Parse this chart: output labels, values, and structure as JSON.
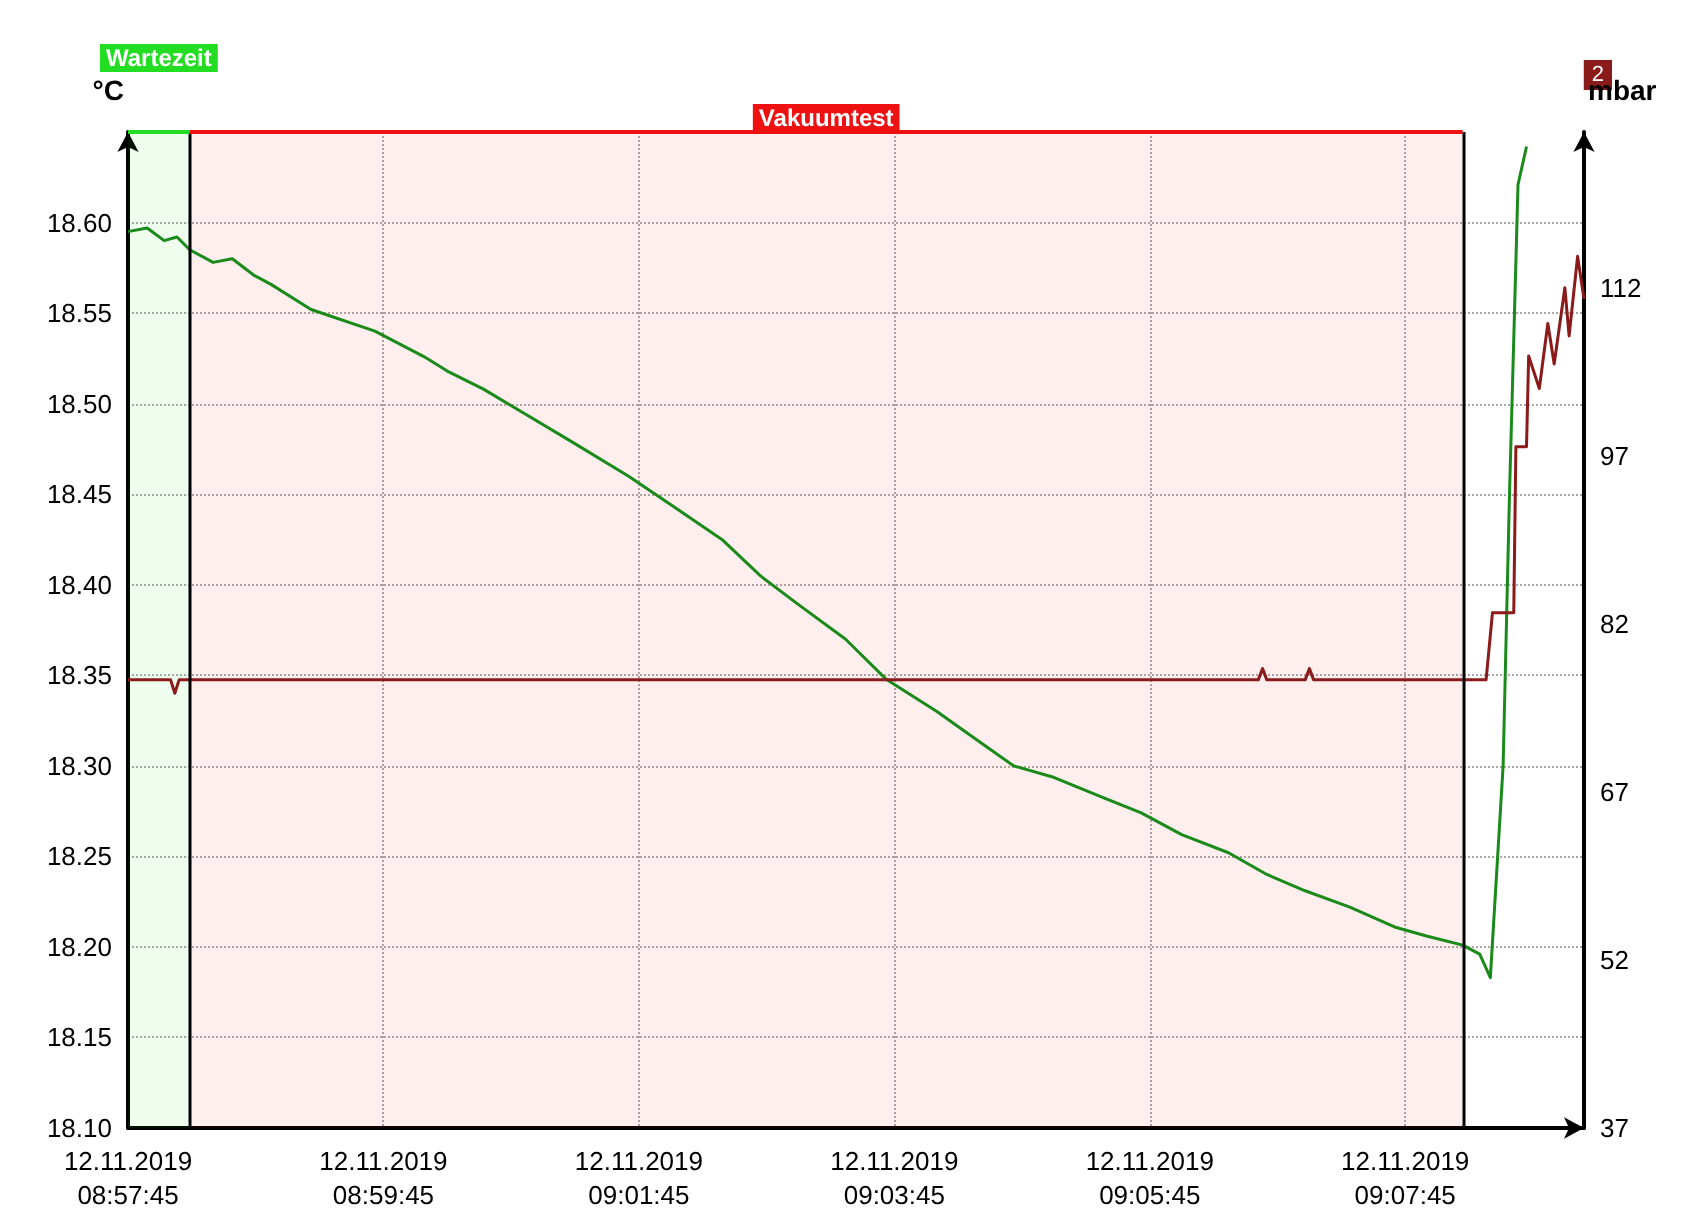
{
  "chart_data": {
    "type": "line",
    "ylabel": "°C",
    "y2label": "mbar",
    "xlim": [
      "2019-11-12T08:57:45",
      "2019-11-12T09:09:09"
    ],
    "xticks": [
      {
        "value": "2019-11-12T08:57:45",
        "label": "12.11.2019\n08:57:45"
      },
      {
        "value": "2019-11-12T08:59:45",
        "label": "12.11.2019\n08:59:45"
      },
      {
        "value": "2019-11-12T09:01:45",
        "label": "12.11.2019\n09:01:45"
      },
      {
        "value": "2019-11-12T09:03:45",
        "label": "12.11.2019\n09:03:45"
      },
      {
        "value": "2019-11-12T09:05:45",
        "label": "12.11.2019\n09:05:45"
      },
      {
        "value": "2019-11-12T09:07:45",
        "label": "12.11.2019\n09:07:45"
      }
    ],
    "ylim": [
      18.1,
      18.65
    ],
    "yticks": [
      {
        "value": 18.1,
        "label": "18.10"
      },
      {
        "value": 18.15,
        "label": "18.15"
      },
      {
        "value": 18.2,
        "label": "18.20"
      },
      {
        "value": 18.25,
        "label": "18.25"
      },
      {
        "value": 18.3,
        "label": "18.30"
      },
      {
        "value": 18.35,
        "label": "18.35"
      },
      {
        "value": 18.4,
        "label": "18.40"
      },
      {
        "value": 18.45,
        "label": "18.45"
      },
      {
        "value": 18.5,
        "label": "18.50"
      },
      {
        "value": 18.55,
        "label": "18.55"
      },
      {
        "value": 18.6,
        "label": "18.60"
      }
    ],
    "y2lim": [
      37,
      125.9
    ],
    "y2ticks": [
      37,
      52,
      67,
      82,
      97,
      112
    ],
    "grid": true,
    "marker": "none",
    "line_style": "solid",
    "series": [
      {
        "color": "#1a8a1a",
        "x": [
          "2019-11-12T08:57:45",
          "2019-11-12T08:57:54",
          "2019-11-12T08:58:02",
          "2019-11-12T08:58:08",
          "2019-11-12T08:58:14",
          "2019-11-12T08:58:25",
          "2019-11-12T08:58:34",
          "2019-11-12T08:58:44",
          "2019-11-12T08:58:52",
          "2019-11-12T08:59:11",
          "2019-11-12T08:59:41",
          "2019-11-12T09:00:04",
          "2019-11-12T09:00:15",
          "2019-11-12T09:00:32",
          "2019-11-12T09:00:52",
          "2019-11-12T09:01:12",
          "2019-11-12T09:01:40",
          "2019-11-12T09:01:59",
          "2019-11-12T09:02:24",
          "2019-11-12T09:02:42",
          "2019-11-12T09:03:00",
          "2019-11-12T09:03:22",
          "2019-11-12T09:03:41",
          "2019-11-12T09:04:05",
          "2019-11-12T09:04:23",
          "2019-11-12T09:04:41",
          "2019-11-12T09:04:59",
          "2019-11-12T09:05:24",
          "2019-11-12T09:05:41",
          "2019-11-12T09:06:00",
          "2019-11-12T09:06:22",
          "2019-11-12T09:06:40",
          "2019-11-12T09:06:58",
          "2019-11-12T09:07:19",
          "2019-11-12T09:07:40",
          "2019-11-12T09:07:55",
          "2019-11-12T09:08:12",
          "2019-11-12T09:08:20",
          "2019-11-12T09:08:25",
          "2019-11-12T09:08:31",
          "2019-11-12T09:08:34",
          "2019-11-12T09:08:38",
          "2019-11-12T09:08:42"
        ],
        "values": [
          18.595,
          18.597,
          18.59,
          18.592,
          18.585,
          18.578,
          18.58,
          18.571,
          18.566,
          18.552,
          18.54,
          18.526,
          18.518,
          18.508,
          18.494,
          18.48,
          18.46,
          18.445,
          18.425,
          18.405,
          18.389,
          18.37,
          18.348,
          18.33,
          18.315,
          18.3,
          18.294,
          18.282,
          18.274,
          18.262,
          18.252,
          18.24,
          18.231,
          18.222,
          18.211,
          18.206,
          18.201,
          18.196,
          18.183,
          18.3,
          18.45,
          18.621,
          18.642
        ]
      },
      {
        "color": "#8b1a1a",
        "axis": "y2",
        "x": [
          "2019-11-12T08:57:45",
          "2019-11-12T08:58:05",
          "2019-11-12T08:58:07",
          "2019-11-12T08:58:09",
          "2019-11-12T09:06:36",
          "2019-11-12T09:06:38",
          "2019-11-12T09:06:40",
          "2019-11-12T09:06:58",
          "2019-11-12T09:07:00",
          "2019-11-12T09:07:02",
          "2019-11-12T09:07:35",
          "2019-11-12T09:08:23",
          "2019-11-12T09:08:26",
          "2019-11-12T09:08:36",
          "2019-11-12T09:08:37",
          "2019-11-12T09:08:42",
          "2019-11-12T09:08:43",
          "2019-11-12T09:08:48",
          "2019-11-12T09:08:52",
          "2019-11-12T09:08:55",
          "2019-11-12T09:09:00",
          "2019-11-12T09:09:02",
          "2019-11-12T09:09:06",
          "2019-11-12T09:09:09"
        ],
        "values": [
          77.0,
          77.0,
          75.8,
          77.0,
          77.0,
          78.0,
          77.0,
          77.0,
          78.0,
          77.0,
          77.0,
          77.0,
          83.0,
          83.0,
          97.8,
          97.8,
          105.9,
          103.0,
          108.8,
          105.2,
          112.0,
          107.7,
          114.8,
          111.0
        ]
      }
    ],
    "ref_lines": [
      {
        "axis": "x",
        "value": "2019-11-12T08:58:14",
        "color": "#000000"
      },
      {
        "axis": "x",
        "value": "2019-11-12T09:08:12",
        "color": "#000000"
      }
    ],
    "bands": [
      {
        "axis": "x",
        "from": "2019-11-12T08:57:45",
        "to": "2019-11-12T08:58:14",
        "label": "Wartezeit",
        "color": "#22dd22"
      },
      {
        "axis": "x",
        "from": "2019-11-12T08:58:14",
        "to": "2019-11-12T09:08:12",
        "label": "Vakuumtest",
        "color": "#ee1111"
      }
    ],
    "annotations": [
      "2"
    ]
  }
}
